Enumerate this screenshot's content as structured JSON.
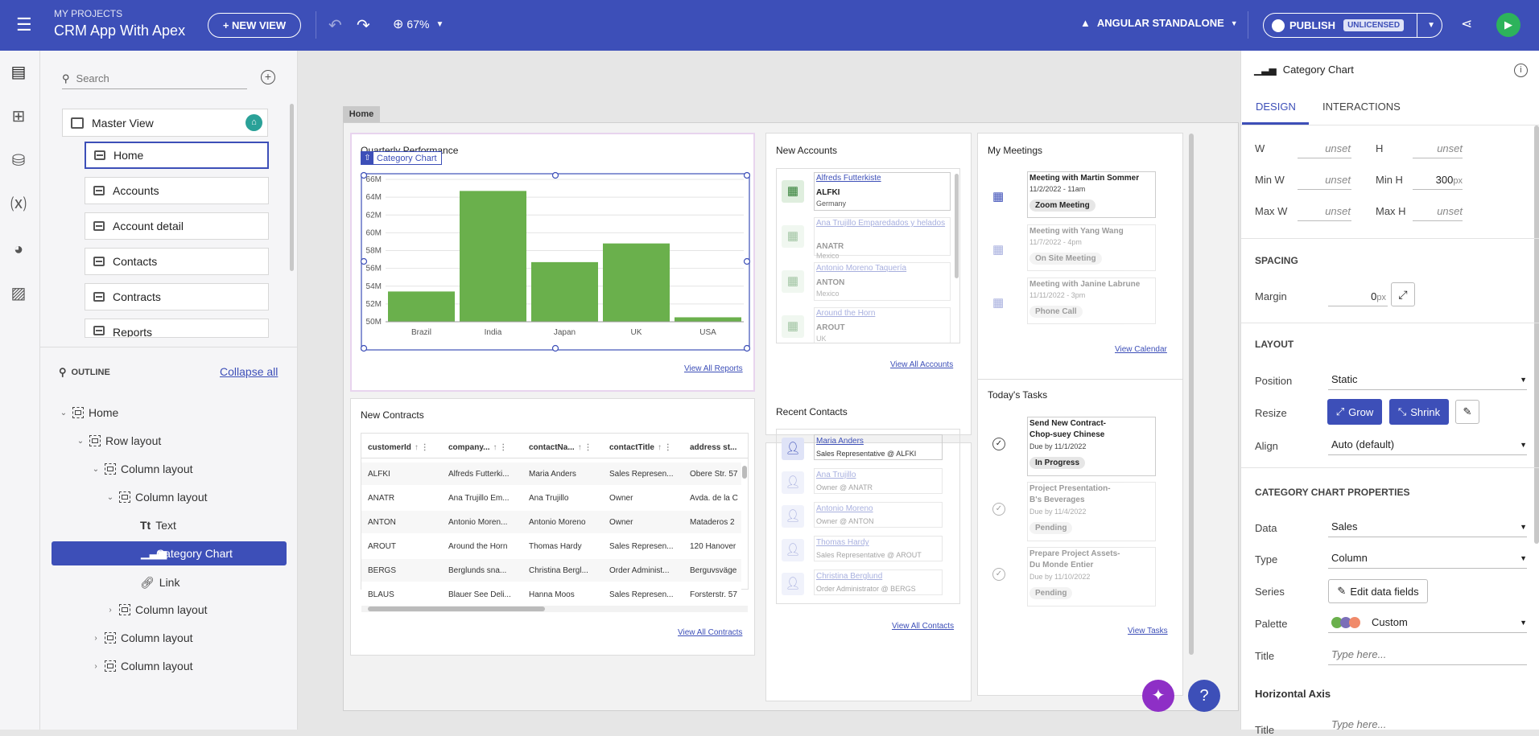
{
  "topbar": {
    "project_label": "MY PROJECTS",
    "app_title": "CRM App With Apex",
    "new_view": "+ NEW VIEW",
    "zoom": "67%",
    "framework": "ANGULAR STANDALONE",
    "publish": "PUBLISH",
    "license_badge": "UNLICENSED"
  },
  "left": {
    "search_placeholder": "Search",
    "master_view": "Master View",
    "pages": [
      "Home",
      "Accounts",
      "Account detail",
      "Contacts",
      "Contracts",
      "Reports"
    ],
    "outline_title": "OUTLINE",
    "collapse_all": "Collapse all",
    "tree": [
      "Home",
      "Row layout",
      "Column layout",
      "Column layout",
      "Text",
      "Category Chart",
      "Link",
      "Column layout",
      "Column layout",
      "Column layout"
    ]
  },
  "canvas": {
    "tab": "Home",
    "quarterly_title": "Quarterly Performance",
    "chart_tag": "Category Chart",
    "view_reports": "View All Reports",
    "new_accounts": "New Accounts",
    "accounts": [
      {
        "name": "Alfreds Futterkiste",
        "id": "ALFKI",
        "country": "Germany"
      },
      {
        "name": "Ana Trujillo Emparedados y helados",
        "id": "ANATR",
        "country": "Mexico"
      },
      {
        "name": "Antonio Moreno Taquería",
        "id": "ANTON",
        "country": "Mexico"
      },
      {
        "name": "Around the Horn",
        "id": "AROUT",
        "country": "UK"
      }
    ],
    "view_accounts": "View All Accounts",
    "my_meetings": "My Meetings",
    "meetings": [
      {
        "title": "Meeting with",
        "person": "Martin Sommer",
        "time": "11/2/2022 - 11am",
        "tag": "Zoom Meeting"
      },
      {
        "title": "Meeting with",
        "person": "Yang Wang",
        "time": "11/7/2022 - 4pm",
        "tag": "On Site Meeting"
      },
      {
        "title": "Meeting with",
        "person": "Janine Labrune",
        "time": "11/11/2022 - 3pm",
        "tag": "Phone Call"
      }
    ],
    "view_calendar": "View Calendar",
    "new_contracts": "New Contracts",
    "grid_headers": [
      "customerId",
      "company...",
      "contactNa...",
      "contactTitle",
      "address st..."
    ],
    "grid_rows": [
      [
        "ALFKI",
        "Alfreds Futterki...",
        "Maria Anders",
        "Sales Represen...",
        "Obere Str. 57"
      ],
      [
        "ANATR",
        "Ana Trujillo Em...",
        "Ana Trujillo",
        "Owner",
        "Avda. de la C"
      ],
      [
        "ANTON",
        "Antonio Moren...",
        "Antonio Moreno",
        "Owner",
        "Mataderos 2"
      ],
      [
        "AROUT",
        "Around the Horn",
        "Thomas Hardy",
        "Sales Represen...",
        "120 Hanover"
      ],
      [
        "BERGS",
        "Berglunds sna...",
        "Christina Bergl...",
        "Order Administ...",
        "Berguvsväge"
      ],
      [
        "BLAUS",
        "Blauer See Deli...",
        "Hanna Moos",
        "Sales Represen...",
        "Forsterstr. 57"
      ]
    ],
    "view_contracts": "View All Contracts",
    "recent_contacts": "Recent Contacts",
    "contacts": [
      {
        "name": "Maria Anders",
        "role": "Sales Representative @ ALFKI"
      },
      {
        "name": "Ana Trujillo",
        "role": "Owner @ ANATR"
      },
      {
        "name": "Antonio Moreno",
        "role": "Owner @ ANTON"
      },
      {
        "name": "Thomas Hardy",
        "role": "Sales Representative @ AROUT"
      },
      {
        "name": "Christina Berglund",
        "role": "Order Administrator @ BERGS"
      }
    ],
    "view_contacts": "View All Contacts",
    "todays_tasks": "Today's Tasks",
    "tasks": [
      {
        "line1": "Send New Contract-",
        "line2": "Chop-suey Chinese",
        "due": "Due by 11/1/2022",
        "status": "In Progress"
      },
      {
        "line1": "Project Presentation-",
        "line2": "B's Beverages",
        "due": "Due by 11/4/2022",
        "status": "Pending"
      },
      {
        "line1": "Prepare Project Assets-",
        "line2": "Du Monde Entier",
        "due": "Due by 11/10/2022",
        "status": "Pending"
      }
    ],
    "view_tasks": "View Tasks"
  },
  "chart_data": {
    "type": "bar",
    "categories": [
      "Brazil",
      "India",
      "Japan",
      "UK",
      "USA"
    ],
    "values": [
      53.4,
      64.7,
      56.7,
      58.8,
      50.5
    ],
    "ylim": [
      50,
      66
    ],
    "yticks": [
      "66M",
      "64M",
      "62M",
      "60M",
      "58M",
      "56M",
      "54M",
      "52M",
      "50M"
    ],
    "color": "#6ab04c"
  },
  "right": {
    "component": "Category Chart",
    "tab_design": "DESIGN",
    "tab_interactions": "INTERACTIONS",
    "w_label": "W",
    "w_val": "unset",
    "h_label": "H",
    "h_val": "unset",
    "minw_label": "Min W",
    "minw_val": "unset",
    "minh_label": "Min H",
    "minh_val": "300",
    "maxw_label": "Max W",
    "maxw_val": "unset",
    "maxh_label": "Max H",
    "maxh_val": "unset",
    "px": "px",
    "spacing": "SPACING",
    "margin_label": "Margin",
    "margin_val": "0",
    "layout": "LAYOUT",
    "position_label": "Position",
    "position_val": "Static",
    "resize_label": "Resize",
    "grow": "Grow",
    "shrink": "Shrink",
    "align_label": "Align",
    "align_val": "Auto (default)",
    "props_head": "CATEGORY CHART PROPERTIES",
    "data_label": "Data",
    "data_val": "Sales",
    "type_label": "Type",
    "type_val": "Column",
    "series_label": "Series",
    "edit_fields": "Edit data fields",
    "palette_label": "Palette",
    "palette_val": "Custom",
    "title_label": "Title",
    "title_placeholder": "Type here...",
    "haxis_head": "Horizontal Axis",
    "haxis_title_label": "Title",
    "haxis_title_placeholder": "Type here..."
  }
}
